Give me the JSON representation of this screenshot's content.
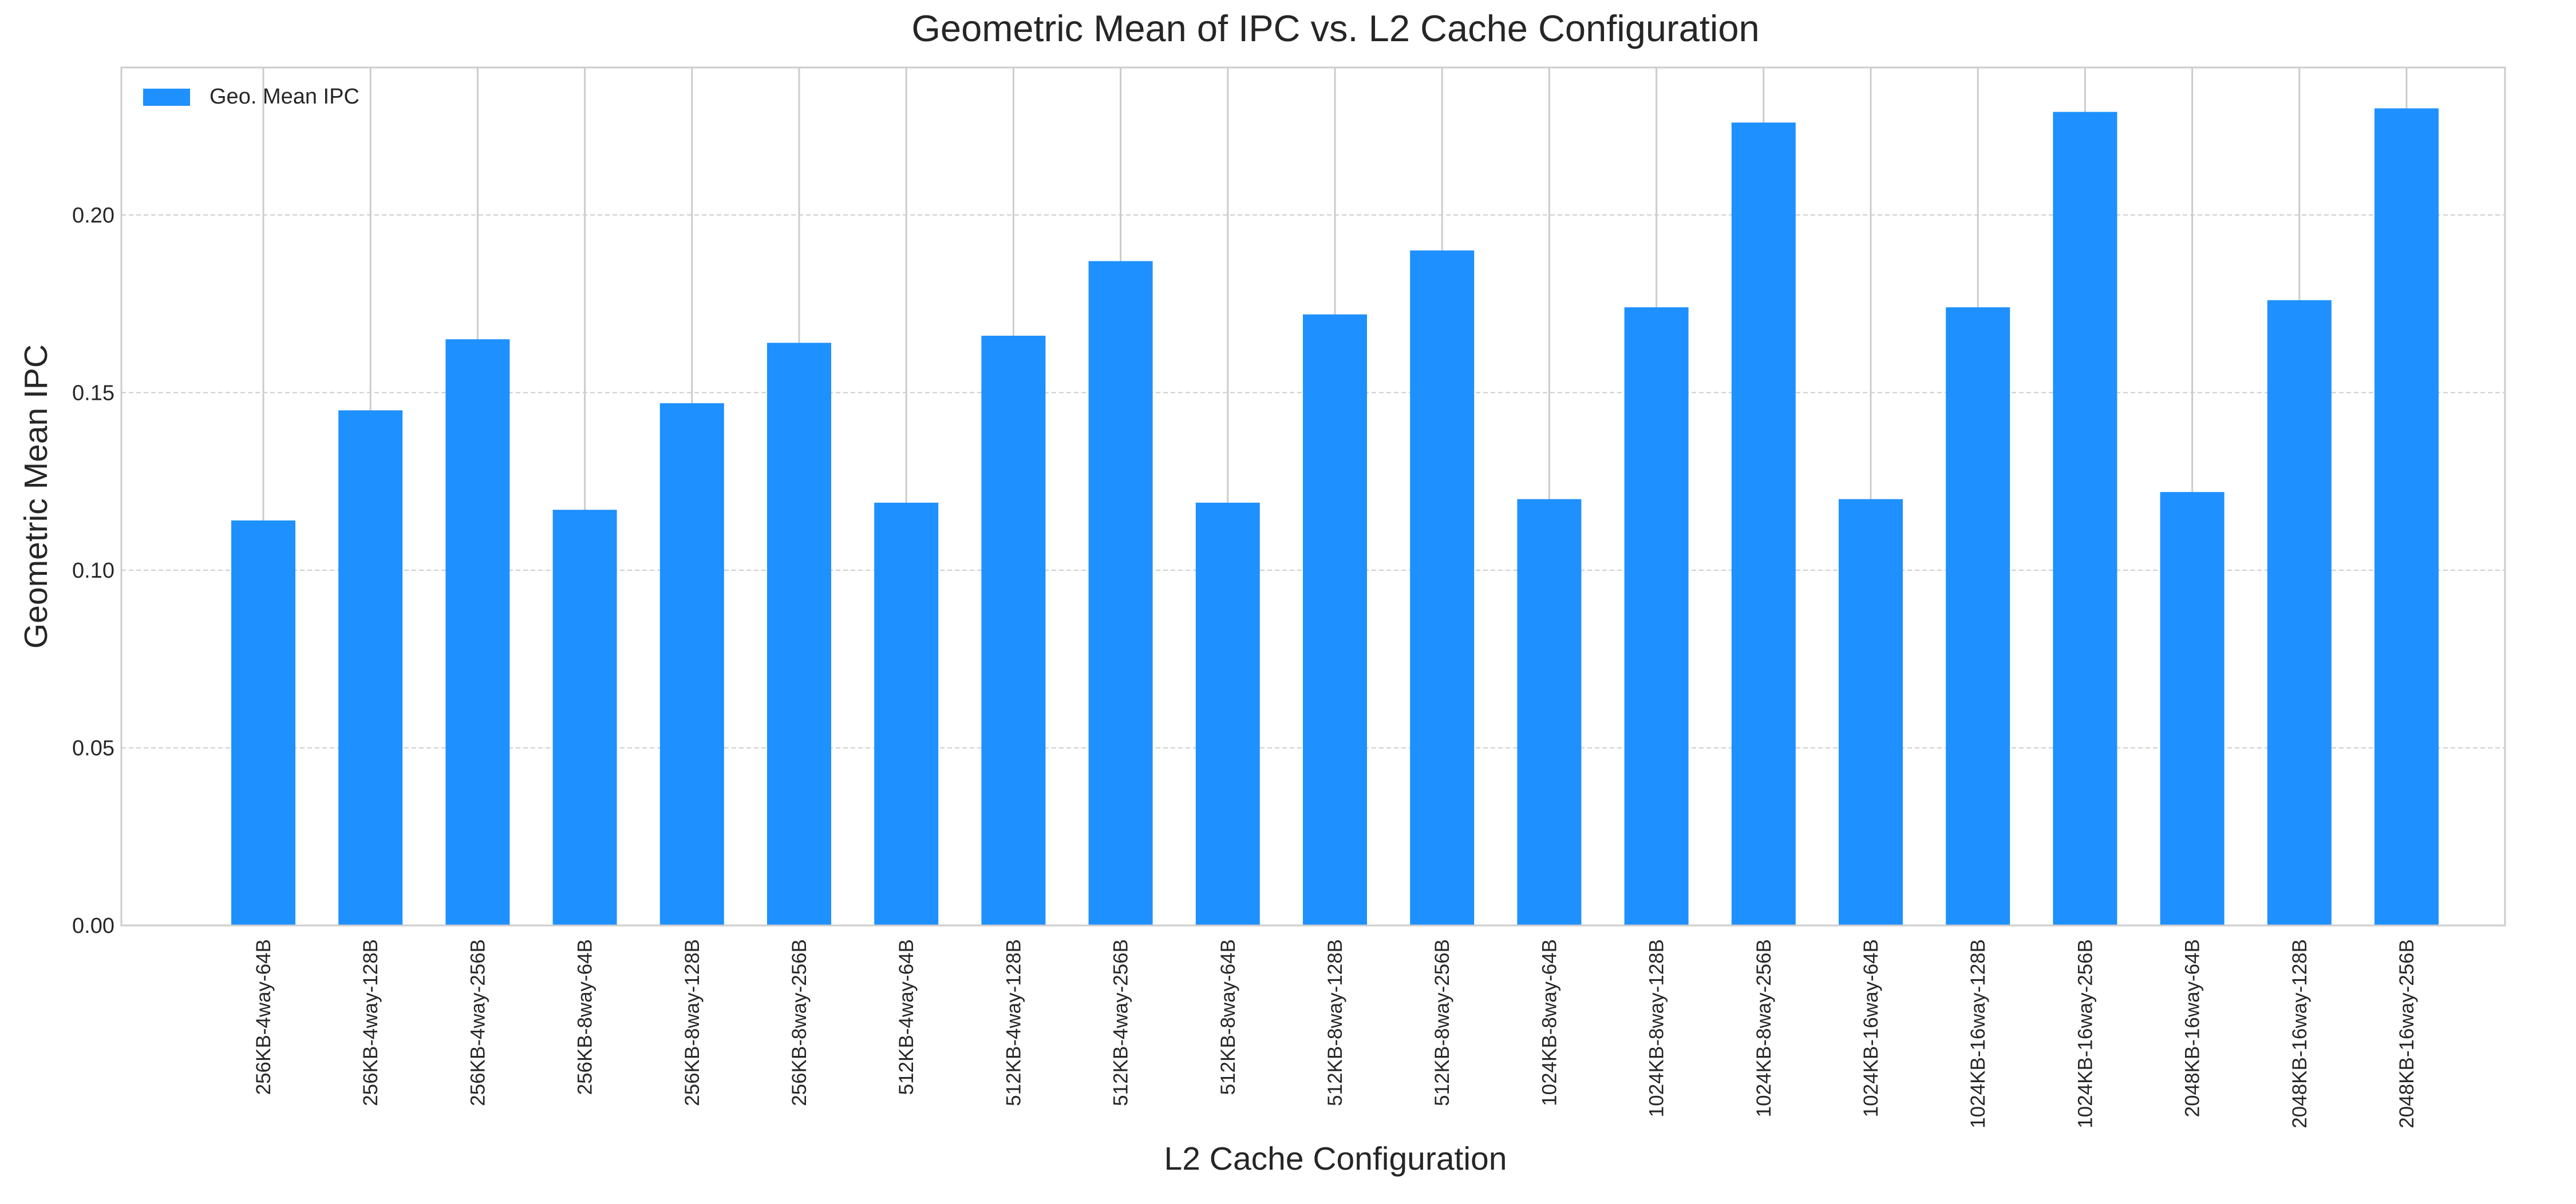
{
  "chart_data": {
    "type": "bar",
    "title": "Geometric Mean of IPC vs. L2 Cache Configuration",
    "xlabel": "L2 Cache Configuration",
    "ylabel": "Geometric Mean IPC",
    "ylim": [
      0,
      0.2415
    ],
    "yticks": [
      0.0,
      0.05,
      0.1,
      0.15,
      0.2
    ],
    "ytick_labels": [
      "0.00",
      "0.05",
      "0.10",
      "0.15",
      "0.20"
    ],
    "grid": true,
    "legend_position": "top-left",
    "categories": [
      "256KB-4way-64B",
      "256KB-4way-128B",
      "256KB-4way-256B",
      "256KB-8way-64B",
      "256KB-8way-128B",
      "256KB-8way-256B",
      "512KB-4way-64B",
      "512KB-4way-128B",
      "512KB-4way-256B",
      "512KB-8way-64B",
      "512KB-8way-128B",
      "512KB-8way-256B",
      "1024KB-8way-64B",
      "1024KB-8way-128B",
      "1024KB-8way-256B",
      "1024KB-16way-64B",
      "1024KB-16way-128B",
      "1024KB-16way-256B",
      "2048KB-16way-64B",
      "2048KB-16way-128B",
      "2048KB-16way-256B"
    ],
    "series": [
      {
        "name": "Geo. Mean IPC",
        "color": "#1e90ff",
        "values": [
          0.114,
          0.145,
          0.165,
          0.117,
          0.147,
          0.164,
          0.119,
          0.166,
          0.187,
          0.119,
          0.172,
          0.19,
          0.12,
          0.174,
          0.226,
          0.12,
          0.174,
          0.229,
          0.122,
          0.176,
          0.23
        ]
      }
    ]
  },
  "colors": {
    "bar": "#1e90ff",
    "grid": "#cccccc",
    "frame": "#cccccc",
    "text": "#262626"
  }
}
